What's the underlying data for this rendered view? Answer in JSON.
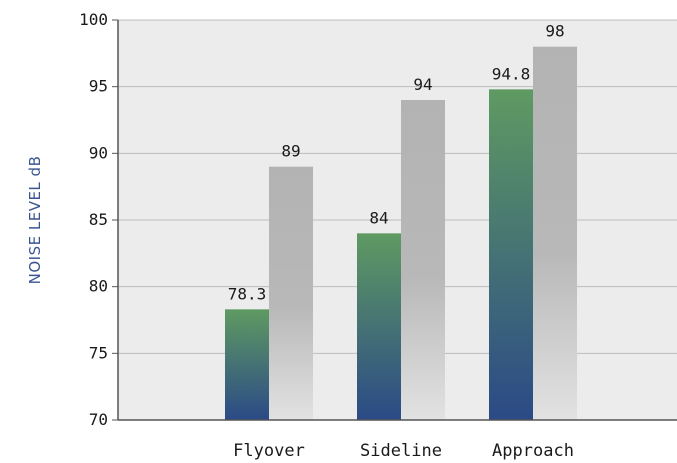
{
  "chart_data": {
    "type": "bar",
    "title": "",
    "xlabel": "",
    "ylabel": "NOISE LEVEL dB",
    "ylim": [
      70,
      100
    ],
    "yticks": [
      70,
      75,
      80,
      85,
      90,
      95,
      100
    ],
    "categories": [
      "Flyover",
      "Sideline",
      "Approach"
    ],
    "series": [
      {
        "values": [
          78.3,
          84,
          94.8
        ],
        "value_labels": [
          "78.3",
          "84",
          "94.8"
        ],
        "color_top": "#5f9a62",
        "color_bottom": "#2b4a86"
      },
      {
        "values": [
          89,
          94,
          98
        ],
        "value_labels": [
          "89",
          "94",
          "98"
        ],
        "color_top": "#b3b3b3",
        "color_bottom": "#e2e2e2"
      }
    ],
    "grid": true,
    "legend": "none",
    "plot_background": "#ececec"
  }
}
